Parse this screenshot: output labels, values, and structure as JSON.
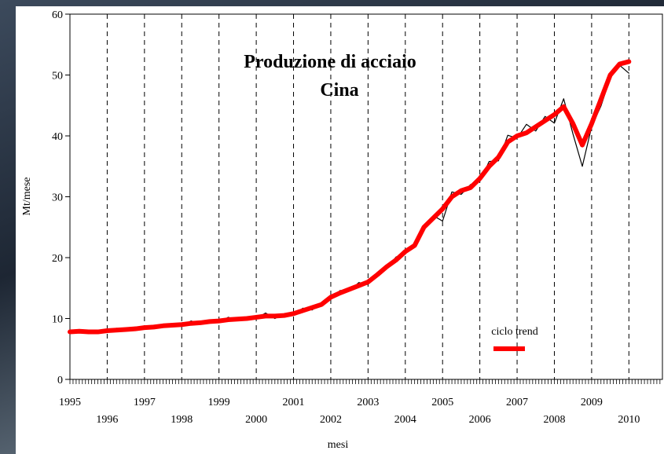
{
  "chart_data": {
    "type": "line",
    "title": [
      "Produzione di acciaio",
      "Cina"
    ],
    "x_label": "mesi",
    "y_label": "Mt/mese",
    "xlim": [
      1995,
      2010.9
    ],
    "ylim": [
      0,
      60
    ],
    "xticks": [
      1995,
      1996,
      1997,
      1998,
      1999,
      2000,
      2001,
      2002,
      2003,
      2004,
      2005,
      2006,
      2007,
      2008,
      2009,
      2010
    ],
    "yticks": [
      0,
      10,
      20,
      30,
      40,
      50,
      60
    ],
    "x": [
      1995,
      1995.25,
      1995.5,
      1995.75,
      1996,
      1996.25,
      1996.5,
      1996.75,
      1997,
      1997.25,
      1997.5,
      1997.75,
      1998,
      1998.25,
      1998.5,
      1998.75,
      1999,
      1999.25,
      1999.5,
      1999.75,
      2000,
      2000.25,
      2000.5,
      2000.75,
      2001,
      2001.25,
      2001.5,
      2001.75,
      2002,
      2002.25,
      2002.5,
      2002.75,
      2003,
      2003.25,
      2003.5,
      2003.75,
      2004,
      2004.25,
      2004.5,
      2004.75,
      2005,
      2005.25,
      2005.5,
      2005.75,
      2006,
      2006.25,
      2006.5,
      2006.75,
      2007,
      2007.25,
      2007.5,
      2007.75,
      2008,
      2008.25,
      2008.5,
      2008.75,
      2009,
      2009.25,
      2009.5,
      2009.75,
      2010
    ],
    "series": [
      {
        "color": "#000000",
        "width": 1.2,
        "values": [
          7.6,
          8.2,
          7.7,
          7.9,
          7.8,
          8.4,
          8.0,
          8.6,
          8.4,
          8.9,
          8.6,
          9.1,
          8.8,
          9.6,
          9.1,
          9.8,
          9.3,
          10.2,
          9.7,
          10.3,
          10.0,
          10.9,
          10.0,
          10.8,
          10.6,
          11.7,
          11.4,
          12.6,
          13.2,
          14.6,
          14.5,
          15.9,
          15.6,
          17.5,
          18.3,
          20.1,
          20.7,
          22.3,
          24.6,
          26.9,
          26.0,
          30.8,
          30.4,
          32.0,
          32.5,
          35.8,
          35.9,
          40.1,
          39.6,
          41.9,
          40.8,
          43.2,
          42.1,
          46.1,
          40.3,
          35.0,
          41.5,
          44.9,
          49.5,
          51.6,
          50.3
        ]
      },
      {
        "name": "ciclo trend",
        "color": "#ff0000",
        "width": 6,
        "values": [
          7.8,
          7.9,
          7.8,
          7.8,
          8.0,
          8.1,
          8.2,
          8.3,
          8.5,
          8.6,
          8.8,
          8.9,
          9.0,
          9.2,
          9.3,
          9.5,
          9.6,
          9.8,
          9.9,
          10.0,
          10.2,
          10.4,
          10.4,
          10.5,
          10.8,
          11.3,
          11.8,
          12.3,
          13.5,
          14.2,
          14.8,
          15.4,
          16.0,
          17.2,
          18.5,
          19.6,
          21.0,
          22.0,
          25.0,
          26.5,
          28.0,
          30.0,
          31.0,
          31.5,
          33.0,
          35.0,
          36.5,
          39.0,
          40.0,
          40.5,
          41.5,
          42.5,
          43.5,
          44.8,
          42.0,
          38.5,
          42.0,
          46.0,
          50.0,
          51.8,
          52.2
        ]
      }
    ]
  }
}
